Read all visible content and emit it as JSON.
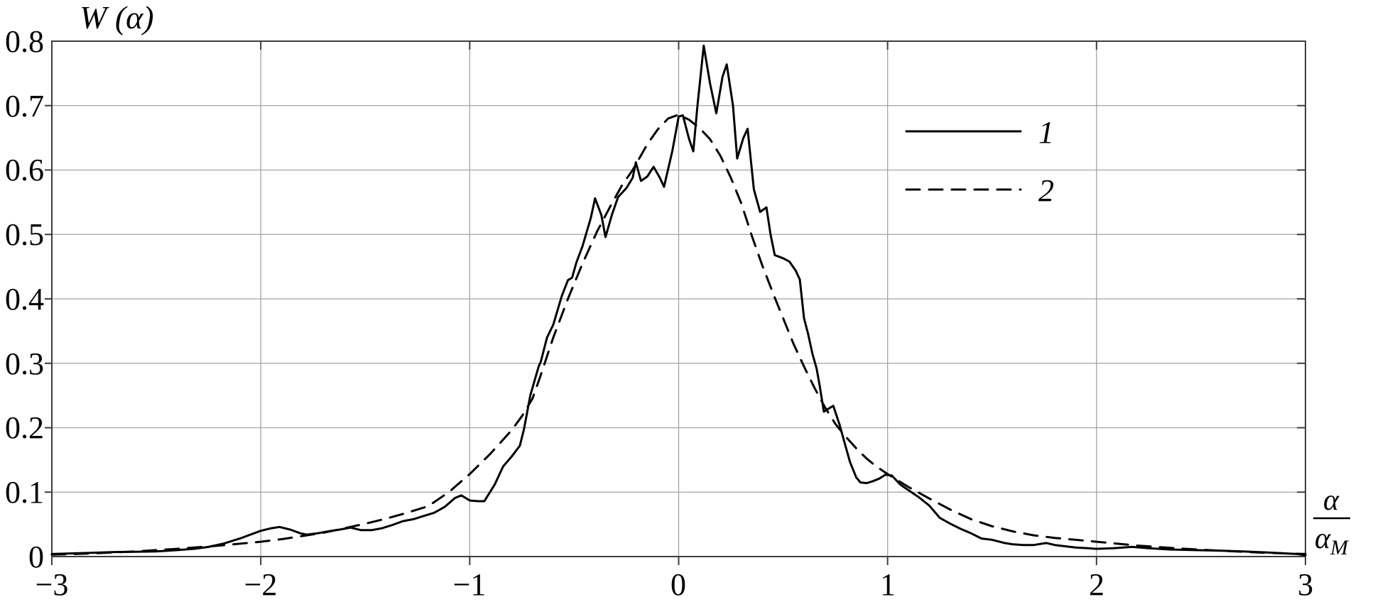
{
  "chart_data": {
    "type": "line",
    "y_axis_label": "W (α)",
    "x_axis_label": {
      "numerator": "α",
      "denominator_base": "α",
      "denominator_sub": "M"
    },
    "xlim": [
      -3,
      3
    ],
    "ylim": [
      0,
      0.8
    ],
    "grid": true,
    "grid_color": "#a3a3a3",
    "line_color": "#000000",
    "background_color": "#ffffff",
    "x_tick_values": [
      -3,
      -2,
      -1,
      0,
      1,
      2,
      3
    ],
    "x_tick_labels": [
      "−3",
      "−2",
      "−1",
      "0",
      "1",
      "2",
      "3"
    ],
    "y_tick_values": [
      0.8,
      0.7,
      0.6,
      0.5,
      0.4,
      0.3,
      0.2,
      0.1,
      0
    ],
    "y_tick_labels": [
      "0.8",
      "0.7",
      "0.6",
      "0.5",
      "0.4",
      "0.3",
      "0.2",
      "0.1",
      "0"
    ],
    "x_gridlines": [
      -2,
      -1,
      0,
      1,
      2
    ],
    "y_gridlines": [
      0.1,
      0.2,
      0.3,
      0.4,
      0.5,
      0.6,
      0.7
    ],
    "legend": {
      "position": "upper right",
      "entries": [
        {
          "label": "1",
          "style": "solid"
        },
        {
          "label": "2",
          "style": "dashed"
        }
      ]
    },
    "series": [
      {
        "name": "1",
        "style": "solid",
        "points": [
          [
            -3.0,
            0.004
          ],
          [
            -2.9,
            0.005
          ],
          [
            -2.8,
            0.006
          ],
          [
            -2.7,
            0.007
          ],
          [
            -2.6,
            0.0075
          ],
          [
            -2.5,
            0.008
          ],
          [
            -2.4,
            0.01
          ],
          [
            -2.32,
            0.012
          ],
          [
            -2.25,
            0.015
          ],
          [
            -2.18,
            0.02
          ],
          [
            -2.1,
            0.028
          ],
          [
            -2.05,
            0.034
          ],
          [
            -2.0,
            0.04
          ],
          [
            -1.95,
            0.044
          ],
          [
            -1.91,
            0.046
          ],
          [
            -1.86,
            0.042
          ],
          [
            -1.81,
            0.036
          ],
          [
            -1.78,
            0.034
          ],
          [
            -1.73,
            0.036
          ],
          [
            -1.68,
            0.039
          ],
          [
            -1.62,
            0.042
          ],
          [
            -1.57,
            0.045
          ],
          [
            -1.52,
            0.041
          ],
          [
            -1.47,
            0.041
          ],
          [
            -1.42,
            0.044
          ],
          [
            -1.37,
            0.049
          ],
          [
            -1.32,
            0.055
          ],
          [
            -1.27,
            0.058
          ],
          [
            -1.22,
            0.063
          ],
          [
            -1.17,
            0.068
          ],
          [
            -1.12,
            0.077
          ],
          [
            -1.07,
            0.091
          ],
          [
            -1.04,
            0.095
          ],
          [
            -1.0,
            0.087
          ],
          [
            -0.96,
            0.086
          ],
          [
            -0.93,
            0.086
          ],
          [
            -0.88,
            0.112
          ],
          [
            -0.84,
            0.14
          ],
          [
            -0.8,
            0.155
          ],
          [
            -0.76,
            0.172
          ],
          [
            -0.74,
            0.198
          ],
          [
            -0.71,
            0.25
          ],
          [
            -0.67,
            0.295
          ],
          [
            -0.66,
            0.302
          ],
          [
            -0.63,
            0.34
          ],
          [
            -0.6,
            0.36
          ],
          [
            -0.56,
            0.404
          ],
          [
            -0.53,
            0.429
          ],
          [
            -0.51,
            0.433
          ],
          [
            -0.49,
            0.456
          ],
          [
            -0.46,
            0.482
          ],
          [
            -0.42,
            0.526
          ],
          [
            -0.4,
            0.556
          ],
          [
            -0.37,
            0.53
          ],
          [
            -0.35,
            0.496
          ],
          [
            -0.32,
            0.53
          ],
          [
            -0.29,
            0.558
          ],
          [
            -0.25,
            0.572
          ],
          [
            -0.22,
            0.588
          ],
          [
            -0.205,
            0.612
          ],
          [
            -0.18,
            0.583
          ],
          [
            -0.15,
            0.59
          ],
          [
            -0.12,
            0.605
          ],
          [
            -0.09,
            0.588
          ],
          [
            -0.07,
            0.574
          ],
          [
            -0.03,
            0.63
          ],
          [
            0.0,
            0.683
          ],
          [
            0.02,
            0.685
          ],
          [
            0.05,
            0.648
          ],
          [
            0.07,
            0.629
          ],
          [
            0.09,
            0.7
          ],
          [
            0.12,
            0.793
          ],
          [
            0.15,
            0.735
          ],
          [
            0.18,
            0.688
          ],
          [
            0.21,
            0.745
          ],
          [
            0.23,
            0.764
          ],
          [
            0.26,
            0.7
          ],
          [
            0.28,
            0.618
          ],
          [
            0.31,
            0.65
          ],
          [
            0.33,
            0.664
          ],
          [
            0.36,
            0.57
          ],
          [
            0.39,
            0.535
          ],
          [
            0.42,
            0.542
          ],
          [
            0.44,
            0.5
          ],
          [
            0.46,
            0.468
          ],
          [
            0.5,
            0.463
          ],
          [
            0.53,
            0.458
          ],
          [
            0.56,
            0.444
          ],
          [
            0.58,
            0.43
          ],
          [
            0.6,
            0.37
          ],
          [
            0.62,
            0.345
          ],
          [
            0.64,
            0.315
          ],
          [
            0.66,
            0.292
          ],
          [
            0.675,
            0.265
          ],
          [
            0.695,
            0.225
          ],
          [
            0.74,
            0.234
          ],
          [
            0.77,
            0.205
          ],
          [
            0.8,
            0.17
          ],
          [
            0.82,
            0.147
          ],
          [
            0.85,
            0.123
          ],
          [
            0.87,
            0.115
          ],
          [
            0.9,
            0.114
          ],
          [
            0.93,
            0.117
          ],
          [
            0.96,
            0.121
          ],
          [
            0.99,
            0.127
          ],
          [
            1.02,
            0.126
          ],
          [
            1.06,
            0.112
          ],
          [
            1.1,
            0.103
          ],
          [
            1.15,
            0.092
          ],
          [
            1.2,
            0.079
          ],
          [
            1.25,
            0.06
          ],
          [
            1.3,
            0.051
          ],
          [
            1.35,
            0.043
          ],
          [
            1.4,
            0.036
          ],
          [
            1.45,
            0.028
          ],
          [
            1.5,
            0.026
          ],
          [
            1.56,
            0.021
          ],
          [
            1.6,
            0.019
          ],
          [
            1.65,
            0.018
          ],
          [
            1.7,
            0.018
          ],
          [
            1.76,
            0.021
          ],
          [
            1.8,
            0.018
          ],
          [
            1.85,
            0.016
          ],
          [
            1.9,
            0.014
          ],
          [
            1.96,
            0.013
          ],
          [
            2.0,
            0.012
          ],
          [
            2.08,
            0.013
          ],
          [
            2.17,
            0.015
          ],
          [
            2.25,
            0.013
          ],
          [
            2.35,
            0.011
          ],
          [
            2.47,
            0.01
          ],
          [
            2.6,
            0.009
          ],
          [
            2.7,
            0.008
          ],
          [
            2.81,
            0.0065
          ],
          [
            2.9,
            0.005
          ],
          [
            2.96,
            0.004
          ],
          [
            3.0,
            0.002
          ]
        ]
      },
      {
        "name": "2",
        "style": "dashed",
        "points": [
          [
            -3.0,
            0.003
          ],
          [
            -2.8,
            0.005
          ],
          [
            -2.6,
            0.008
          ],
          [
            -2.4,
            0.012
          ],
          [
            -2.2,
            0.017
          ],
          [
            -2.0,
            0.023
          ],
          [
            -1.9,
            0.027
          ],
          [
            -1.8,
            0.032
          ],
          [
            -1.7,
            0.037
          ],
          [
            -1.6,
            0.044
          ],
          [
            -1.5,
            0.051
          ],
          [
            -1.4,
            0.059
          ],
          [
            -1.3,
            0.068
          ],
          [
            -1.2,
            0.078
          ],
          [
            -1.1,
            0.1
          ],
          [
            -1.0,
            0.128
          ],
          [
            -0.9,
            0.16
          ],
          [
            -0.8,
            0.196
          ],
          [
            -0.75,
            0.218
          ],
          [
            -0.7,
            0.245
          ],
          [
            -0.665,
            0.277
          ],
          [
            -0.6,
            0.34
          ],
          [
            -0.53,
            0.4
          ],
          [
            -0.46,
            0.455
          ],
          [
            -0.39,
            0.505
          ],
          [
            -0.32,
            0.548
          ],
          [
            -0.27,
            0.577
          ],
          [
            -0.22,
            0.6
          ],
          [
            -0.15,
            0.64
          ],
          [
            -0.1,
            0.663
          ],
          [
            -0.05,
            0.68
          ],
          [
            0.0,
            0.686
          ],
          [
            0.05,
            0.678
          ],
          [
            0.1,
            0.665
          ],
          [
            0.15,
            0.648
          ],
          [
            0.2,
            0.622
          ],
          [
            0.25,
            0.588
          ],
          [
            0.3,
            0.548
          ],
          [
            0.35,
            0.498
          ],
          [
            0.4,
            0.452
          ],
          [
            0.46,
            0.402
          ],
          [
            0.5,
            0.37
          ],
          [
            0.55,
            0.33
          ],
          [
            0.6,
            0.295
          ],
          [
            0.65,
            0.262
          ],
          [
            0.7,
            0.232
          ],
          [
            0.75,
            0.206
          ],
          [
            0.8,
            0.186
          ],
          [
            0.85,
            0.168
          ],
          [
            0.9,
            0.152
          ],
          [
            0.95,
            0.139
          ],
          [
            1.0,
            0.128
          ],
          [
            1.1,
            0.108
          ],
          [
            1.2,
            0.09
          ],
          [
            1.3,
            0.073
          ],
          [
            1.4,
            0.058
          ],
          [
            1.5,
            0.047
          ],
          [
            1.6,
            0.039
          ],
          [
            1.7,
            0.033
          ],
          [
            1.8,
            0.029
          ],
          [
            1.9,
            0.026
          ],
          [
            2.0,
            0.023
          ],
          [
            2.2,
            0.017
          ],
          [
            2.4,
            0.0125
          ],
          [
            2.6,
            0.009
          ],
          [
            2.8,
            0.006
          ],
          [
            3.0,
            0.004
          ]
        ]
      }
    ]
  }
}
